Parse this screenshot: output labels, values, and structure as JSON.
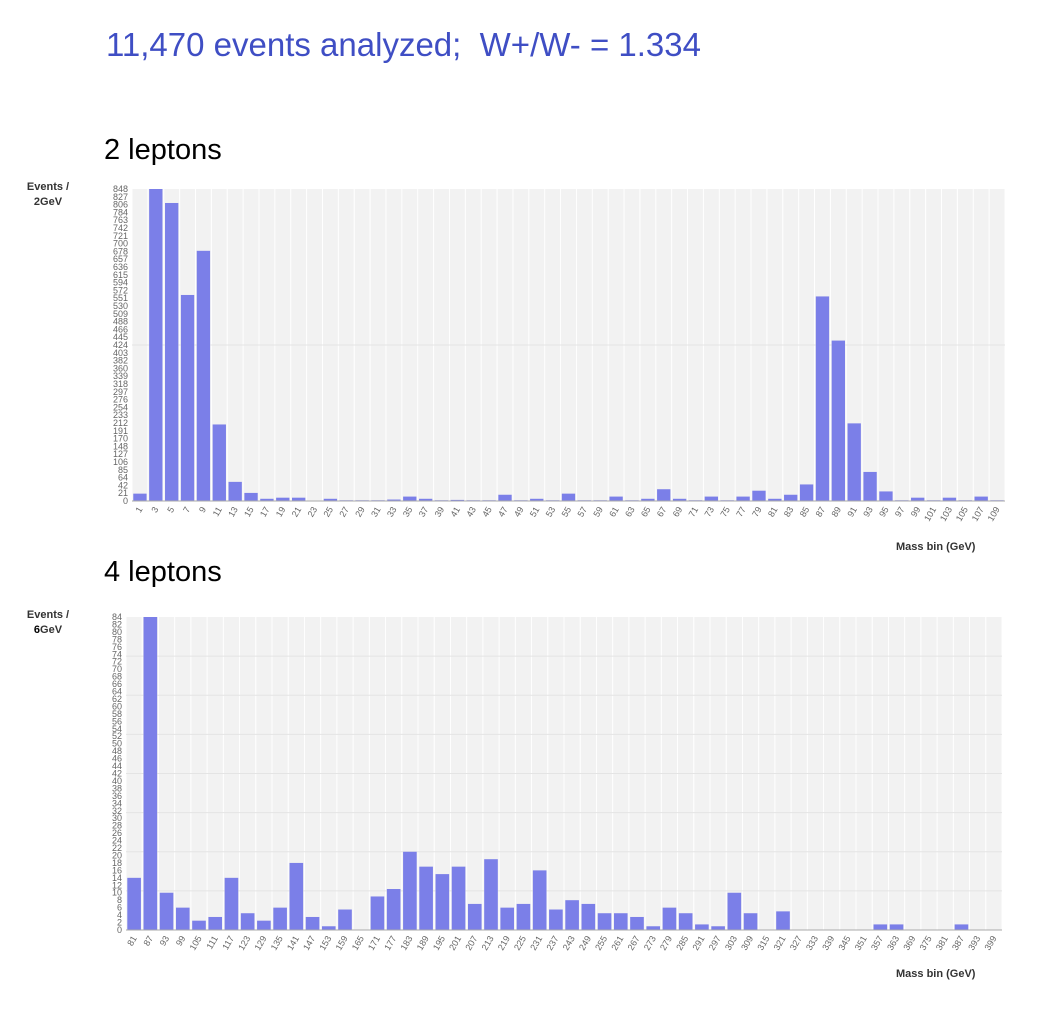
{
  "headline": "11,470 events analyzed;  W+/W- = 1.334",
  "chart_data": [
    {
      "type": "bar",
      "title": "2 leptons",
      "ylabel_prefix": "Events /",
      "ylabel_unit": "2GeV",
      "ylabel_bold": "",
      "ylabel_rest": "2GeV",
      "xlabel": "Mass bin (GeV)",
      "ylim": [
        0,
        848
      ],
      "grid": true,
      "color": "#7b7fe8",
      "categories": [
        1,
        3,
        5,
        7,
        9,
        11,
        13,
        15,
        17,
        19,
        21,
        23,
        25,
        27,
        29,
        31,
        33,
        35,
        37,
        39,
        41,
        43,
        45,
        47,
        49,
        51,
        53,
        55,
        57,
        59,
        61,
        63,
        65,
        67,
        69,
        71,
        73,
        75,
        77,
        79,
        81,
        83,
        85,
        87,
        89,
        91,
        93,
        95,
        97,
        99,
        101,
        103,
        105,
        107,
        109
      ],
      "values": [
        20,
        848,
        810,
        560,
        680,
        208,
        52,
        22,
        6,
        9,
        9,
        1,
        6,
        2,
        2,
        2,
        4,
        12,
        6,
        2,
        3,
        2,
        2,
        17,
        2,
        6,
        2,
        20,
        2,
        2,
        12,
        2,
        6,
        32,
        6,
        2,
        12,
        2,
        12,
        28,
        6,
        17,
        45,
        556,
        436,
        211,
        79,
        26,
        2,
        9,
        2,
        9,
        2,
        12,
        2
      ]
    },
    {
      "type": "bar",
      "title": "4 leptons",
      "ylabel_prefix": "Events /",
      "ylabel_bold": "6",
      "ylabel_rest": "GeV",
      "xlabel": "Mass bin (GeV)",
      "ylim": [
        0,
        84
      ],
      "grid": true,
      "color": "#7b7fe8",
      "categories": [
        81,
        87,
        93,
        99,
        105,
        111,
        117,
        123,
        129,
        135,
        141,
        147,
        153,
        159,
        165,
        171,
        177,
        183,
        189,
        195,
        201,
        207,
        213,
        219,
        225,
        231,
        237,
        243,
        249,
        255,
        261,
        267,
        273,
        279,
        285,
        291,
        297,
        303,
        309,
        315,
        321,
        327,
        333,
        339,
        345,
        351,
        357,
        363,
        369,
        375,
        381,
        387,
        393,
        399
      ],
      "values": [
        14,
        84,
        10,
        6,
        2.5,
        3.5,
        14,
        4.5,
        2.5,
        6,
        18,
        3.5,
        1,
        5.5,
        0,
        9,
        11,
        21,
        17,
        15,
        17,
        7,
        19,
        6,
        7,
        16,
        5.5,
        8,
        7,
        4.5,
        4.5,
        3.5,
        1,
        6,
        4.5,
        1.5,
        1,
        10,
        4.5,
        0,
        5,
        0,
        0,
        0,
        0,
        0,
        1.5,
        1.5,
        0,
        0,
        0,
        1.5,
        0,
        0
      ]
    }
  ]
}
